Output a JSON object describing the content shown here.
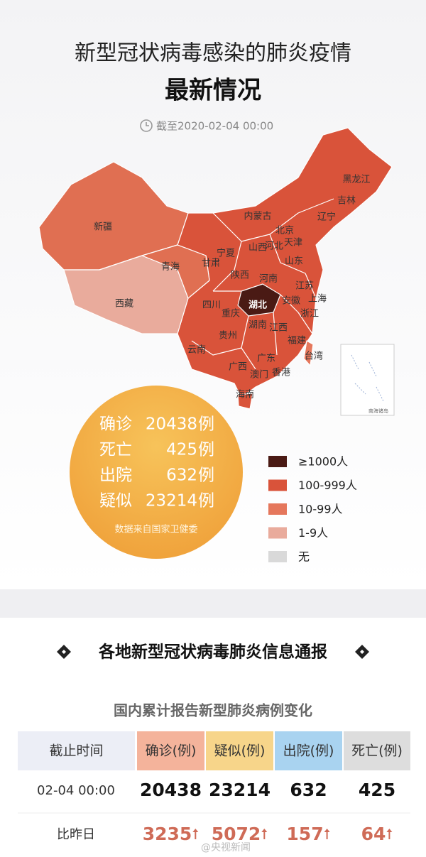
{
  "header": {
    "title": "新型冠状病毒感染的肺炎疫情",
    "subtitle": "最新情况",
    "timestamp": "截至2020-02-04 00:00"
  },
  "map": {
    "labels": [
      "黑龙江",
      "吉林",
      "辽宁",
      "内蒙古",
      "北京",
      "天津",
      "河北",
      "山西",
      "宁夏",
      "甘肃",
      "山东",
      "陕西",
      "河南",
      "江苏",
      "安徽",
      "上海",
      "湖北",
      "浙江",
      "四川",
      "重庆",
      "江西",
      "湖南",
      "贵州",
      "福建",
      "台湾",
      "云南",
      "广西",
      "广东",
      "澳门",
      "香港",
      "海南",
      "新疆",
      "青海",
      "西藏"
    ],
    "inset": "南海诸岛"
  },
  "stats": {
    "rows": [
      {
        "label": "确诊",
        "value": 20438,
        "unit": "例"
      },
      {
        "label": "死亡",
        "value": 425,
        "unit": "例"
      },
      {
        "label": "出院",
        "value": 632,
        "unit": "例"
      },
      {
        "label": "疑似",
        "value": 23214,
        "unit": "例"
      }
    ],
    "source": "数据来自国家卫健委"
  },
  "legend": [
    {
      "label": "≥1000人",
      "color": "#4a1a14"
    },
    {
      "label": "100-999人",
      "color": "#d9533a"
    },
    {
      "label": "10-99人",
      "color": "#e5775c"
    },
    {
      "label": "1-9人",
      "color": "#e9ab9c"
    },
    {
      "label": "无",
      "color": "#d9d9d9"
    }
  ],
  "section_title": "各地新型冠状病毒肺炎信息通报",
  "table": {
    "title": "国内累计报告新型肺炎病例变化",
    "headers": [
      "截止时间",
      "确诊(例)",
      "疑似(例)",
      "出院(例)",
      "死亡(例)"
    ],
    "rows": [
      {
        "label": "02-04 00:00",
        "values": [
          20438,
          23214,
          632,
          425
        ]
      },
      {
        "label": "比昨日",
        "values": [
          3235,
          5072,
          157,
          64
        ]
      }
    ]
  },
  "watermark": "@央视新闻"
}
